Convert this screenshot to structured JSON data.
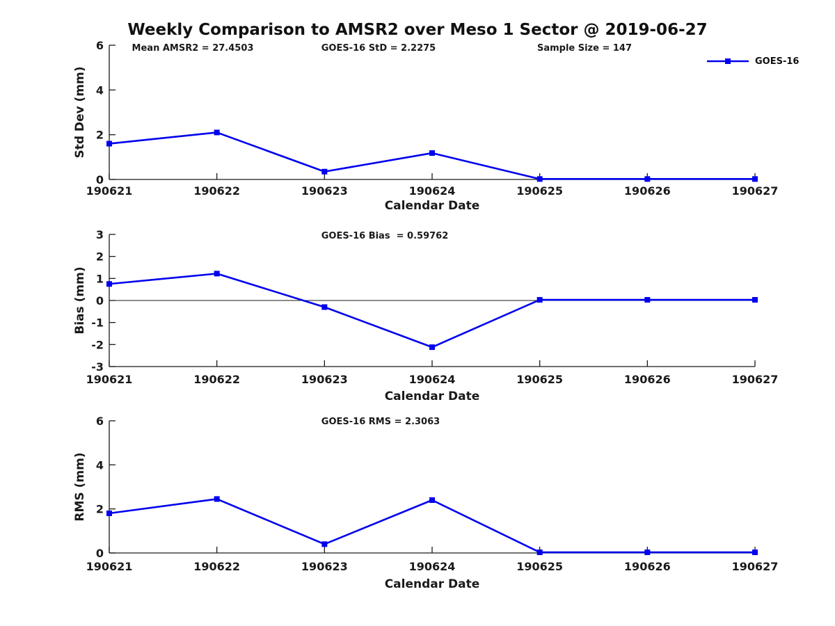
{
  "figure": {
    "title": "Weekly Comparison to AMSR2 over Meso 1 Sector @ 2019-06-27",
    "legend": {
      "label": "GOES-16"
    },
    "colors": {
      "series": "#0000EE",
      "text": "#1a1a1a",
      "axis": "#1a1a1a",
      "background": "#ffffff"
    }
  },
  "chart_data": [
    {
      "type": "line",
      "name": "std-dev",
      "title": "",
      "annotations": [
        "Mean AMSR2 = 27.4503",
        "GOES-16 StD = 2.2275",
        "Sample Size = 147"
      ],
      "categories": [
        "190621",
        "190622",
        "190623",
        "190624",
        "190625",
        "190626",
        "190627"
      ],
      "series": [
        {
          "name": "GOES-16",
          "values": [
            1.6,
            2.1,
            0.35,
            1.18,
            0.02,
            0.02,
            0.02
          ]
        }
      ],
      "xlabel": "Calendar Date",
      "ylabel": "Std Dev (mm)",
      "ylim": [
        0,
        6
      ],
      "yticks": [
        0,
        2,
        4,
        6
      ],
      "zero_line": false,
      "grid": false,
      "legend_position": "top-right",
      "marker": "square"
    },
    {
      "type": "line",
      "name": "bias",
      "title": "",
      "annotations": [
        "GOES-16 Bias  = 0.59762"
      ],
      "categories": [
        "190621",
        "190622",
        "190623",
        "190624",
        "190625",
        "190626",
        "190627"
      ],
      "series": [
        {
          "name": "GOES-16",
          "values": [
            0.75,
            1.22,
            -0.3,
            -2.12,
            0.03,
            0.03,
            0.03
          ]
        }
      ],
      "xlabel": "Calendar Date",
      "ylabel": "Bias (mm)",
      "ylim": [
        -3,
        3
      ],
      "yticks": [
        -3,
        -2,
        -1,
        0,
        1,
        2,
        3
      ],
      "zero_line": true,
      "grid": false,
      "legend_position": "none",
      "marker": "square"
    },
    {
      "type": "line",
      "name": "rms",
      "title": "",
      "annotations": [
        "GOES-16 RMS = 2.3063"
      ],
      "categories": [
        "190621",
        "190622",
        "190623",
        "190624",
        "190625",
        "190626",
        "190627"
      ],
      "series": [
        {
          "name": "GOES-16",
          "values": [
            1.8,
            2.45,
            0.4,
            2.4,
            0.03,
            0.03,
            0.03
          ]
        }
      ],
      "xlabel": "Calendar Date",
      "ylabel": "RMS (mm)",
      "ylim": [
        0,
        6
      ],
      "yticks": [
        0,
        2,
        4,
        6
      ],
      "zero_line": false,
      "grid": false,
      "legend_position": "none",
      "marker": "square"
    }
  ]
}
